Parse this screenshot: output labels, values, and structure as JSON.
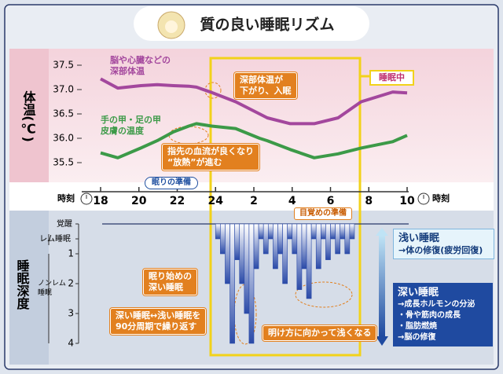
{
  "title": "質の良い睡眠リズム",
  "chart_data": [
    {
      "type": "line",
      "ylabel": "体温(℃)",
      "xlabel": "時刻",
      "x": [
        18,
        18.9,
        20.1,
        20.95,
        21.8,
        22.6,
        23,
        23.8,
        25.05,
        26.3,
        26.7,
        27.9,
        29.15,
        30.4,
        31.6,
        33.25,
        34
      ],
      "series": [
        {
          "name": "脳や心臓などの\n深部体温",
          "color": "#a3479d",
          "values": [
            37.22,
            37.03,
            37.08,
            37.1,
            37.08,
            37.07,
            37.05,
            36.94,
            36.75,
            36.5,
            36.42,
            36.3,
            36.3,
            36.42,
            36.75,
            36.95,
            36.93
          ]
        },
        {
          "name": "手の甲・足の甲\n皮膚の温度",
          "color": "#3c9a48",
          "values": [
            35.7,
            35.6,
            35.8,
            35.95,
            36.13,
            36.25,
            36.3,
            36.25,
            36.2,
            36.0,
            35.95,
            35.77,
            35.6,
            35.68,
            35.8,
            35.93,
            36.06
          ]
        }
      ],
      "xlim": [
        18,
        34
      ],
      "xticks": [
        18,
        20,
        22,
        24,
        {
          "value": 26,
          "label": "2"
        },
        {
          "value": 28,
          "label": "4"
        },
        {
          "value": 30,
          "label": "6"
        },
        {
          "value": 32,
          "label": "8"
        },
        {
          "value": 34,
          "label": "10"
        }
      ],
      "ylim": [
        35.5,
        37.5
      ],
      "yticks": [
        35.5,
        {
          "value": 36,
          "label": "36.0"
        },
        36.5,
        {
          "value": 37,
          "label": "37.0"
        },
        37.5
      ],
      "annotations": [
        "深部体温が\n下がり、入眠",
        "指先の血流が良くなり\n“放熱”が進む",
        "睡眠中",
        "眠りの準備",
        "目覚めの準備"
      ]
    },
    {
      "type": "step",
      "ylabel": "睡眠深度",
      "x": [
        24.0,
        24.25,
        24.5,
        24.75,
        25.0,
        25.25,
        25.5,
        25.75,
        26.0,
        26.25,
        26.5,
        26.75,
        27.0,
        27.25,
        27.5,
        27.75,
        28.0,
        28.25,
        28.5,
        28.75,
        29.0,
        29.25,
        29.5,
        29.75,
        30.0,
        30.25,
        30.5,
        30.75,
        31.0
      ],
      "values": [
        0.5,
        1,
        2,
        4,
        1.2,
        2,
        3,
        4,
        1.5,
        0.5,
        1,
        0.5,
        1.5,
        1,
        2,
        0.5,
        1,
        2.2,
        1.5,
        2.5,
        0.5,
        1.5,
        0.5,
        1.2,
        0.5,
        1,
        0.5,
        1,
        0.5
      ],
      "color": "#2a4aa8",
      "ylim": [
        0,
        4
      ],
      "yticks": [
        {
          "value": 0,
          "label": "覚醒"
        },
        {
          "value": 0.5,
          "label": "レム睡眠"
        },
        1,
        2,
        3,
        4
      ],
      "annotations": [
        "ノンレム\n睡眠",
        "眠り始めの\n深い睡眠",
        "深い睡眠↔浅い睡眠を\n90分周期で繰り返す",
        "明け方に向かって浅くなる"
      ],
      "legend": [
        {
          "title": "浅い睡眠",
          "text": "→体の修復(疲労回復)"
        },
        {
          "title": "深い睡眠",
          "text": "→成長ホルモンの分泌\n・骨や筋肉の成長\n・脂肪燃焼\n→脳の修復"
        }
      ]
    }
  ]
}
